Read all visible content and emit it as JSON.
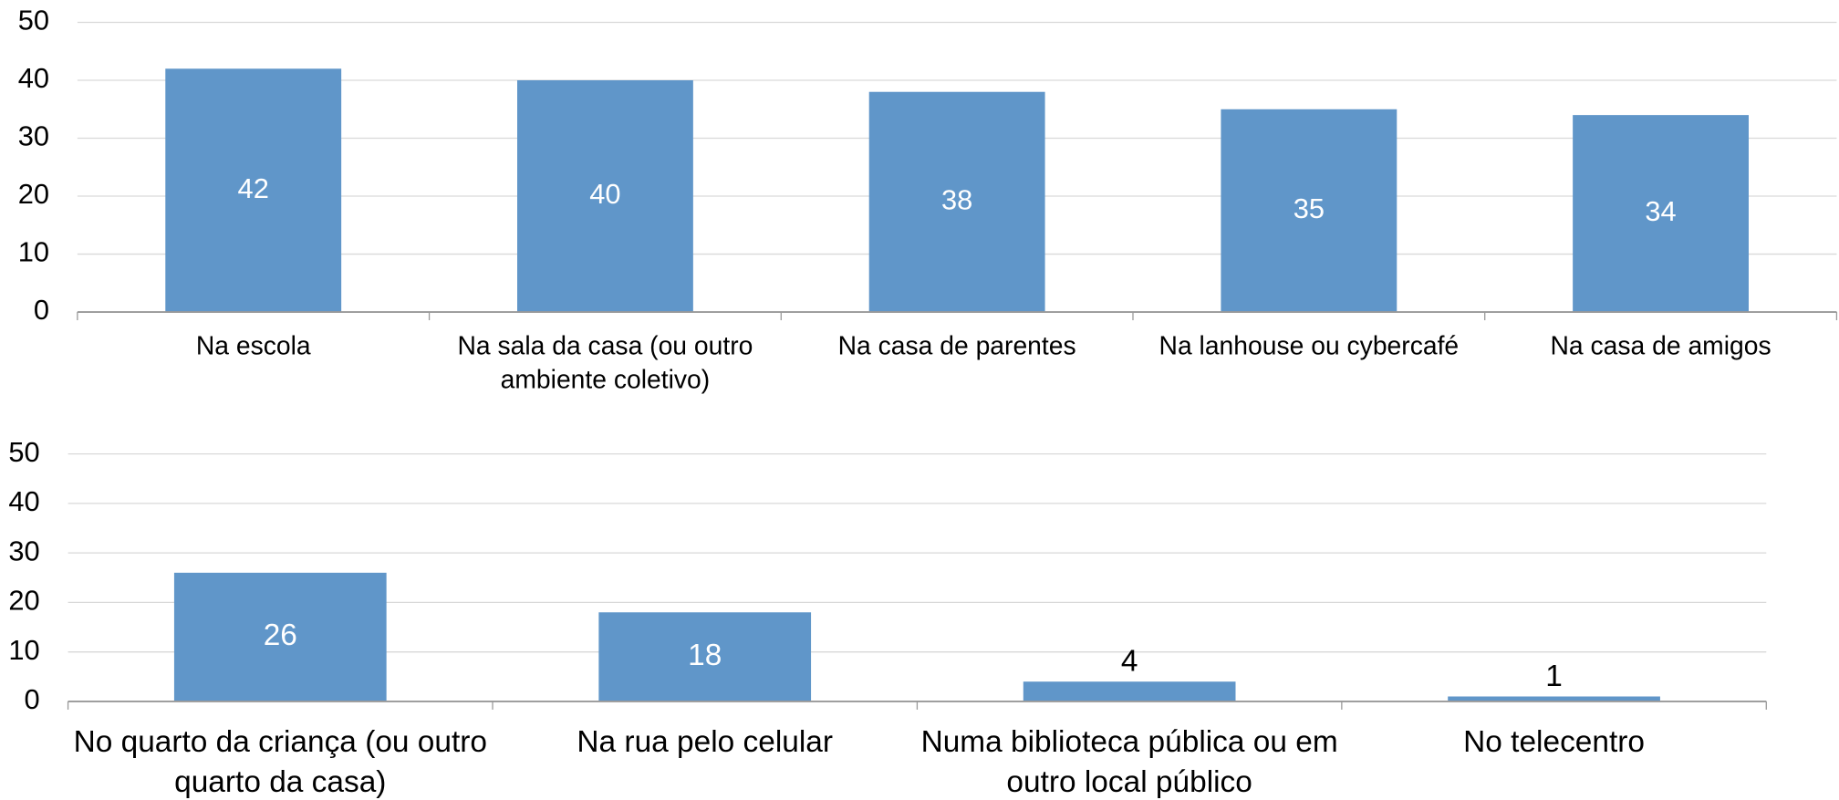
{
  "chart_data": [
    {
      "type": "bar",
      "categories": [
        "Na escola",
        "Na sala da casa (ou outro ambiente coletivo)",
        "Na casa de parentes",
        "Na lanhouse ou cybercafé",
        "Na casa de amigos"
      ],
      "values": [
        42,
        40,
        38,
        35,
        34
      ],
      "color": "#6096c9",
      "ylim": [
        0,
        50
      ],
      "yticks": [
        0,
        10,
        20,
        30,
        40,
        50
      ],
      "grid": true
    },
    {
      "type": "bar",
      "categories": [
        "No quarto da criança (ou outro quarto da casa)",
        "Na rua pelo celular",
        "Numa biblioteca pública ou em outro local público",
        "No telecentro"
      ],
      "values": [
        26,
        18,
        4,
        1
      ],
      "color": "#6096c9",
      "ylim": [
        0,
        50
      ],
      "yticks": [
        0,
        10,
        20,
        30,
        40,
        50
      ],
      "grid": true
    }
  ]
}
